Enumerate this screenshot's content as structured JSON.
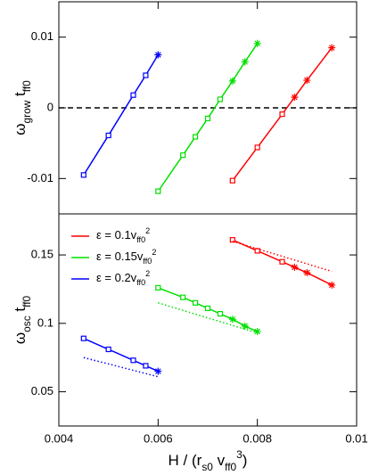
{
  "chart_data": [
    {
      "type": "line",
      "ylabel": [
        {
          "text": "ω"
        },
        {
          "text": "grow",
          "sub": true
        },
        {
          "text": " t"
        },
        {
          "text": "ff0",
          "sub": true
        }
      ],
      "xlim": [
        0.004,
        0.01
      ],
      "ylim": [
        -0.015,
        0.015
      ],
      "yticks": [
        -0.01,
        0,
        0.01
      ],
      "hline": {
        "value": 0,
        "color": "#000000",
        "dash": "dashed"
      },
      "series": [
        {
          "color": "#0000ff",
          "x": [
            0.0045,
            0.005,
            0.0055,
            0.00575,
            0.006
          ],
          "values": [
            -0.0095,
            -0.0039,
            0.0018,
            0.0046,
            0.0075
          ],
          "markers": [
            "square",
            "square",
            "square",
            "square",
            "star"
          ]
        },
        {
          "color": "#00e000",
          "x": [
            0.006,
            0.0065,
            0.00675,
            0.007,
            0.00725,
            0.0075,
            0.00775,
            0.008
          ],
          "values": [
            -0.0118,
            -0.0067,
            -0.0041,
            -0.0015,
            0.0012,
            0.0038,
            0.0065,
            0.0091
          ],
          "markers": [
            "square",
            "square",
            "square",
            "square",
            "square",
            "star",
            "star",
            "star"
          ]
        },
        {
          "color": "#ff0000",
          "x": [
            0.0075,
            0.008,
            0.0085,
            0.00875,
            0.009,
            0.0095
          ],
          "values": [
            -0.0103,
            -0.0056,
            -0.0009,
            0.0015,
            0.0039,
            0.0085
          ],
          "markers": [
            "square",
            "square",
            "square",
            "star",
            "star",
            "star"
          ]
        }
      ]
    },
    {
      "type": "line",
      "ylabel": [
        {
          "text": "ω"
        },
        {
          "text": "osc",
          "sub": true
        },
        {
          "text": " t"
        },
        {
          "text": "ff0",
          "sub": true
        }
      ],
      "xlabel": [
        {
          "text": "H / (r"
        },
        {
          "text": "s0",
          "sub": true
        },
        {
          "text": " v"
        },
        {
          "text": "ff0",
          "sub": true
        },
        {
          "text": "3",
          "sup": true
        },
        {
          "text": ")"
        }
      ],
      "xlim": [
        0.004,
        0.01
      ],
      "xticks": [
        0.004,
        0.006,
        0.008,
        0.01
      ],
      "ylim": [
        0.025,
        0.18
      ],
      "yticks": [
        0.05,
        0.1,
        0.15
      ],
      "legend": "upper left",
      "series": [
        {
          "name": [
            {
              "text": "ε = 0.1v"
            },
            {
              "text": "ff0",
              "sub": true
            },
            {
              "text": "2",
              "sup": true
            }
          ],
          "color": "#ff0000",
          "x": [
            0.0075,
            0.008,
            0.0085,
            0.00875,
            0.009,
            0.0095
          ],
          "values": [
            0.161,
            0.153,
            0.145,
            0.141,
            0.137,
            0.128
          ],
          "markers": [
            "square",
            "square",
            "square",
            "star",
            "star",
            "star"
          ]
        },
        {
          "name": [
            {
              "text": "ε = 0.15v"
            },
            {
              "text": "ff0",
              "sub": true
            },
            {
              "text": "2",
              "sup": true
            }
          ],
          "color": "#00e000",
          "x": [
            0.006,
            0.0065,
            0.00675,
            0.007,
            0.00725,
            0.0075,
            0.00775,
            0.008
          ],
          "values": [
            0.126,
            0.119,
            0.115,
            0.111,
            0.107,
            0.103,
            0.098,
            0.094
          ],
          "markers": [
            "square",
            "square",
            "square",
            "square",
            "square",
            "star",
            "star",
            "star"
          ]
        },
        {
          "name": [
            {
              "text": "ε = 0.2v"
            },
            {
              "text": "ff0",
              "sub": true
            },
            {
              "text": "2",
              "sup": true
            }
          ],
          "color": "#0000ff",
          "x": [
            0.0045,
            0.005,
            0.0055,
            0.00575,
            0.006
          ],
          "values": [
            0.089,
            0.081,
            0.073,
            0.069,
            0.065
          ],
          "markers": [
            "square",
            "square",
            "square",
            "square",
            "star"
          ]
        },
        {
          "color": "#ff0000",
          "dash": "dotted",
          "x": [
            0.0075,
            0.0095
          ],
          "values": [
            0.16,
            0.138
          ]
        },
        {
          "color": "#00e000",
          "dash": "dotted",
          "x": [
            0.006,
            0.008
          ],
          "values": [
            0.115,
            0.093
          ]
        },
        {
          "color": "#0000ff",
          "dash": "dotted",
          "x": [
            0.0045,
            0.006
          ],
          "values": [
            0.075,
            0.061
          ]
        }
      ]
    }
  ]
}
